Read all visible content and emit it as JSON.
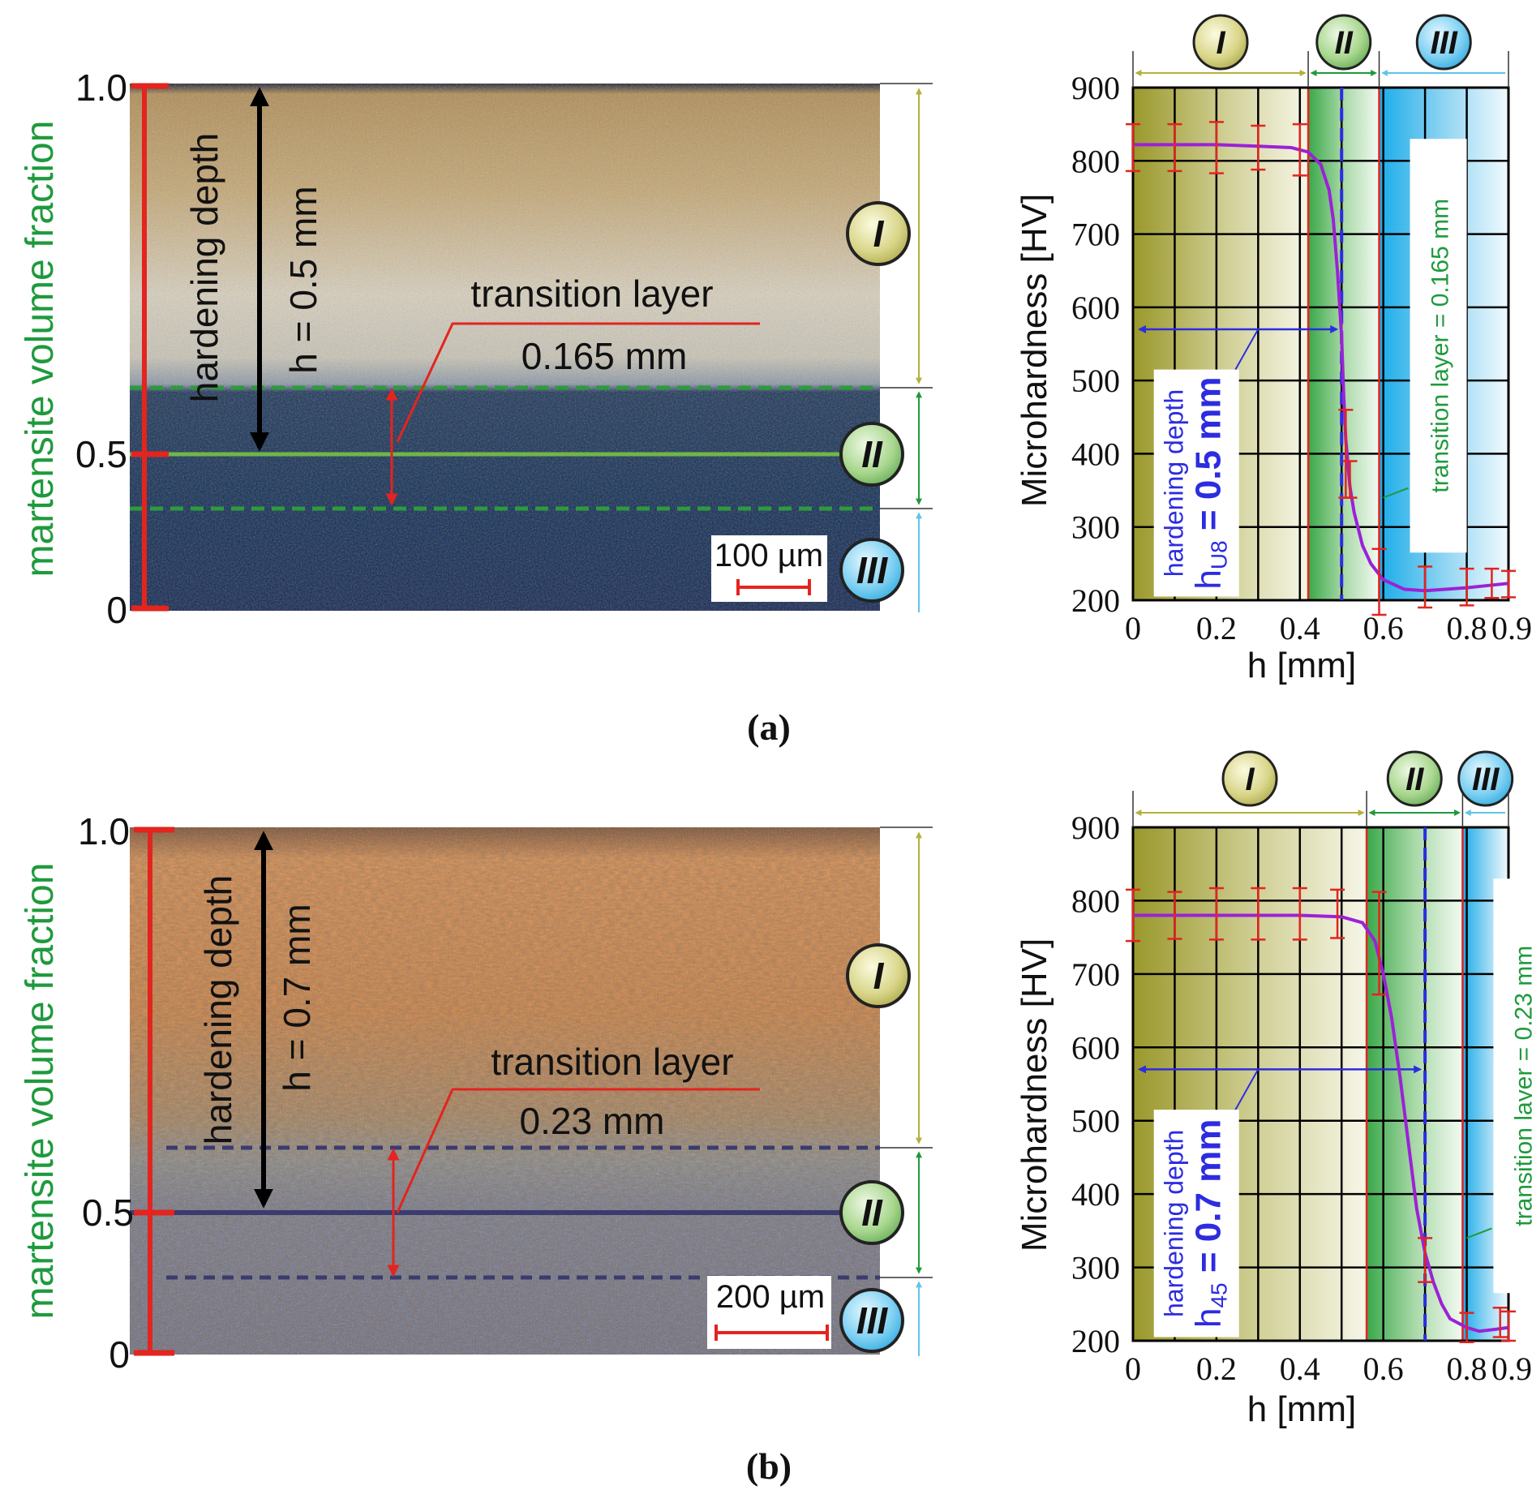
{
  "colors": {
    "red": "#e3241f",
    "green": "#1e9a3c",
    "olive": "#b5b13a",
    "cyan": "#5fc6e6",
    "blue": "#2c2ce0",
    "purple": "#9b22d6",
    "zone1": "#9b9a2e",
    "zone2": "#3caa4c",
    "zone3": "#22aee8"
  },
  "panels": [
    {
      "label": "(a)",
      "micrograph": {
        "y_axis_label": "martensite volume fraction",
        "ticks": [
          "1.0",
          "0.5",
          "0"
        ],
        "depth_label": "hardening depth",
        "h_label": "h = 0.5 mm",
        "transition_label": "transition layer",
        "transition_value": "0.165 mm",
        "scale_bar": "100 µm",
        "zones": [
          "I",
          "II",
          "III"
        ]
      },
      "chart_data": {
        "type": "line",
        "xlabel": "h [mm]",
        "ylabel": "Microhardness [HV]",
        "xlim": [
          0,
          0.9
        ],
        "ylim": [
          200,
          900
        ],
        "x_ticks": [
          "0",
          "0.2",
          "0.4",
          "0.6",
          "0.8",
          "0.9"
        ],
        "y_ticks": [
          "900",
          "800",
          "700",
          "600",
          "500",
          "400",
          "300",
          "200"
        ],
        "zone_bounds": [
          0,
          0.42,
          0.59,
          0.9
        ],
        "zone_labels": [
          "I",
          "II",
          "III"
        ],
        "hardening_depth_mm": 0.5,
        "hardening_text": "hardening depth",
        "hardening_value": "h",
        "hardening_sub": "U8",
        "hardening_eq": " = 0.5 mm",
        "transition_text": "transition layer =  0.165 mm",
        "curve": {
          "x": [
            0,
            0.1,
            0.2,
            0.3,
            0.38,
            0.42,
            0.45,
            0.47,
            0.48,
            0.49,
            0.5,
            0.505,
            0.51,
            0.52,
            0.53,
            0.55,
            0.57,
            0.6,
            0.65,
            0.7,
            0.75,
            0.8,
            0.85,
            0.9
          ],
          "y": [
            822,
            822,
            822,
            820,
            818,
            812,
            795,
            760,
            720,
            650,
            560,
            480,
            420,
            355,
            320,
            275,
            250,
            228,
            215,
            213,
            215,
            217,
            220,
            223
          ]
        },
        "error_bars": {
          "x": [
            0,
            0.1,
            0.2,
            0.3,
            0.4,
            0.51,
            0.52,
            0.59,
            0.7,
            0.8,
            0.86,
            0.9
          ],
          "y": [
            818,
            818,
            818,
            818,
            815,
            400,
            365,
            225,
            218,
            218,
            223,
            222
          ],
          "err": [
            32,
            32,
            35,
            30,
            35,
            60,
            25,
            45,
            28,
            25,
            20,
            18
          ]
        }
      }
    },
    {
      "label": "(b)",
      "micrograph": {
        "y_axis_label": "martensite volume fraction",
        "ticks": [
          "1.0",
          "0.5",
          "0"
        ],
        "depth_label": "hardening depth",
        "h_label": "h = 0.7 mm",
        "transition_label": "transition layer",
        "transition_value": "0.23 mm",
        "scale_bar": "200 µm",
        "zones": [
          "I",
          "II",
          "III"
        ]
      },
      "chart_data": {
        "type": "line",
        "xlabel": "h [mm]",
        "ylabel": "Microhardness [HV]",
        "xlim": [
          0,
          0.9
        ],
        "ylim": [
          200,
          900
        ],
        "x_ticks": [
          "0",
          "0.2",
          "0.4",
          "0.6",
          "0.8",
          "0.9"
        ],
        "y_ticks": [
          "900",
          "800",
          "700",
          "600",
          "500",
          "400",
          "300",
          "200"
        ],
        "zone_bounds": [
          0,
          0.56,
          0.79,
          0.9
        ],
        "zone_labels": [
          "I",
          "II",
          "III"
        ],
        "hardening_depth_mm": 0.7,
        "hardening_text": "hardening depth",
        "hardening_value": "h",
        "hardening_sub": "45",
        "hardening_eq": " = 0.7 mm",
        "transition_text": "transition layer =  0.23 mm",
        "curve": {
          "x": [
            0,
            0.1,
            0.2,
            0.3,
            0.4,
            0.5,
            0.55,
            0.58,
            0.6,
            0.62,
            0.64,
            0.66,
            0.68,
            0.7,
            0.72,
            0.74,
            0.76,
            0.8,
            0.83,
            0.86,
            0.9
          ],
          "y": [
            780,
            780,
            780,
            780,
            780,
            778,
            770,
            745,
            700,
            640,
            560,
            470,
            380,
            320,
            280,
            250,
            230,
            218,
            213,
            215,
            218
          ],
          "note": "sigmoid drop from ~780 HV to ~215 HV"
        },
        "error_bars": {
          "x": [
            0,
            0.1,
            0.2,
            0.3,
            0.4,
            0.49,
            0.59,
            0.7,
            0.8,
            0.88,
            0.9
          ],
          "y": [
            780,
            780,
            782,
            782,
            782,
            782,
            742,
            310,
            218,
            225,
            220
          ],
          "err": [
            35,
            32,
            35,
            35,
            35,
            33,
            70,
            30,
            20,
            20,
            20
          ]
        }
      }
    }
  ]
}
